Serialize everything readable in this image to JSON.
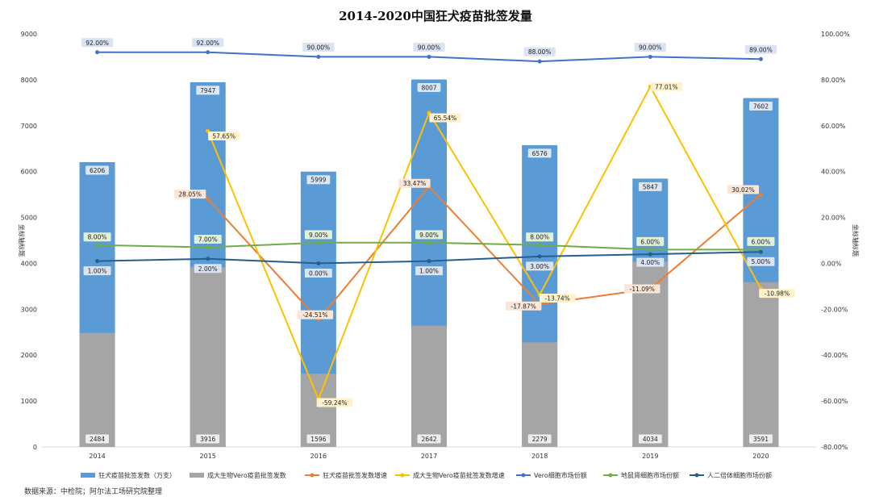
{
  "chart_data": {
    "type": "bar",
    "title": "2014-2020中国狂犬疫苗批签发量",
    "categories": [
      "2014",
      "2015",
      "2016",
      "2017",
      "2018",
      "2019",
      "2020"
    ],
    "y_left_label": "坐标轴标题",
    "y_right_label": "坐标轴标题",
    "ylim_left": [
      0,
      9000
    ],
    "ylim_right": [
      -0.8,
      1.0
    ],
    "y_left_ticks": [
      "0",
      "1000",
      "2000",
      "3000",
      "4000",
      "5000",
      "6000",
      "7000",
      "8000",
      "9000"
    ],
    "y_right_ticks": [
      "-80.00%",
      "-60.00%",
      "-40.00%",
      "-20.00%",
      "0.00%",
      "20.00%",
      "40.00%",
      "60.00%",
      "80.00%",
      "100.00%"
    ],
    "bar_series": [
      {
        "name": "狂犬疫苗批签发数（万支）",
        "color": "#5b9bd5",
        "values": [
          6206,
          7947,
          5999,
          8007,
          6576,
          5847,
          7602
        ],
        "labels": [
          "6206",
          "7947",
          "5999",
          "8007",
          "6576",
          "5847",
          "7602"
        ]
      },
      {
        "name": "成大生物Vero疫苗批签发数",
        "color": "#a5a5a5",
        "values": [
          2484,
          3916,
          1596,
          2642,
          2279,
          4034,
          3591
        ],
        "labels": [
          "2484",
          "3916",
          "1596",
          "2642",
          "2279",
          "4034",
          "3591"
        ]
      }
    ],
    "line_series": [
      {
        "name": "狂犬疫苗批签发数增速",
        "color": "#ed7d31",
        "values": [
          null,
          0.2805,
          -0.2451,
          0.3347,
          -0.1787,
          -0.1109,
          0.3002
        ],
        "labels": [
          null,
          "28.05%",
          "-24.51%",
          "33.47%",
          "-17.87%",
          "-11.09%",
          "30.02%"
        ]
      },
      {
        "name": "成大生物Vero疫苗批签发数增速",
        "color": "#ffc000",
        "values": [
          null,
          0.5765,
          -0.5924,
          0.6554,
          -0.1374,
          0.7701,
          -0.1098
        ],
        "labels": [
          null,
          "57.65%",
          "-59.24%",
          "65.54%",
          "-13.74%",
          "77.01%",
          "-10.98%"
        ]
      },
      {
        "name": "Vero细胞市场份额",
        "color": "#4472c4",
        "values": [
          0.92,
          0.92,
          0.9,
          0.9,
          0.88,
          0.9,
          0.89
        ],
        "labels": [
          "92.00%",
          "92.00%",
          "90.00%",
          "90.00%",
          "88.00%",
          "90.00%",
          "89.00%"
        ]
      },
      {
        "name": "地鼠肾细胞市场份额",
        "color": "#70ad47",
        "values": [
          0.08,
          0.07,
          0.09,
          0.09,
          0.08,
          0.06,
          0.06
        ],
        "labels": [
          "8.00%",
          "7.00%",
          "9.00%",
          "9.00%",
          "8.00%",
          "6.00%",
          "6.00%"
        ]
      },
      {
        "name": "人二倍体细胞市场份额",
        "color": "#255e91",
        "values": [
          0.01,
          0.02,
          0.0,
          0.01,
          0.03,
          0.04,
          0.05
        ],
        "labels": [
          "1.00%",
          "2.00%",
          "0.00%",
          "1.00%",
          "3.00%",
          "4.00%",
          "5.00%"
        ]
      }
    ],
    "legend_position": "bottom",
    "grid": false
  },
  "footer": {
    "source": "数据来源：中检院；阿尔法工场研究院整理"
  }
}
